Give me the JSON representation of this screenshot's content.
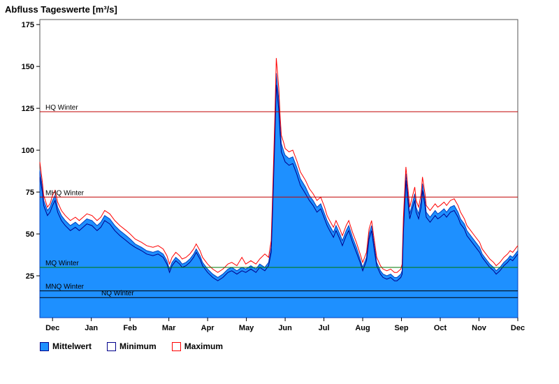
{
  "chart_data": {
    "type": "area",
    "title": "Abfluss Tageswerte [m³/s]",
    "x_axis": {
      "range": [
        0,
        376
      ],
      "tick_labels": [
        "Dec",
        "Jan",
        "Feb",
        "Mar",
        "Apr",
        "May",
        "Jun",
        "Jul",
        "Aug",
        "Sep",
        "Oct",
        "Nov",
        "Dec"
      ],
      "tick_days": [
        10,
        40.5,
        71,
        101.5,
        132,
        162.5,
        193,
        223.5,
        254,
        284.5,
        315,
        345.5,
        376
      ]
    },
    "y_axis": {
      "range": [
        0,
        178
      ],
      "ticks": [
        25,
        50,
        75,
        100,
        125,
        150,
        175
      ]
    },
    "x": [
      0,
      2,
      3,
      6,
      8,
      10,
      12,
      14,
      17,
      20,
      24,
      28,
      31,
      34,
      37,
      41,
      45,
      48,
      51,
      55,
      59,
      63,
      68,
      71,
      75,
      80,
      84,
      89,
      93,
      97,
      100,
      102,
      104,
      107,
      110,
      112,
      115,
      118,
      121,
      123,
      126,
      128,
      132,
      136,
      140,
      144,
      148,
      151,
      155,
      159,
      162,
      166,
      170,
      173,
      177,
      180,
      182,
      183,
      185,
      186,
      188,
      189,
      190,
      192,
      193,
      196,
      199,
      202,
      205,
      209,
      212,
      215,
      218,
      221,
      224,
      226,
      228,
      231,
      233,
      236,
      238,
      241,
      243,
      246,
      249,
      252,
      254,
      257,
      259,
      261,
      263,
      265,
      268,
      270,
      273,
      276,
      279,
      281,
      284,
      285,
      286,
      288,
      290,
      291,
      293,
      295,
      296,
      298,
      300,
      301,
      303,
      304,
      307,
      309,
      311,
      313,
      315,
      318,
      320,
      323,
      326,
      329,
      331,
      334,
      336,
      339,
      342,
      346,
      348,
      351,
      354,
      357,
      359,
      362,
      365,
      368,
      370,
      372,
      374,
      376
    ],
    "series": [
      {
        "name": "Mittelwert",
        "style": "area",
        "color": "#1E90FF",
        "edge": "#0040C0",
        "values": [
          88,
          78,
          70,
          64,
          66,
          70,
          73,
          66,
          61,
          58,
          55,
          57,
          55,
          57,
          59,
          58,
          55,
          57,
          61,
          59,
          55,
          52,
          49,
          47,
          44,
          42,
          40,
          39,
          40,
          38,
          34,
          29,
          33,
          36,
          34,
          32,
          33,
          35,
          38,
          41,
          37,
          33,
          29,
          26,
          24,
          26,
          29,
          30,
          28,
          30,
          29,
          31,
          29,
          32,
          30,
          33,
          42,
          65,
          115,
          146,
          130,
          115,
          104,
          99,
          97,
          95,
          96,
          90,
          83,
          78,
          73,
          70,
          66,
          68,
          62,
          58,
          55,
          51,
          55,
          50,
          46,
          52,
          55,
          48,
          42,
          35,
          30,
          36,
          50,
          55,
          44,
          33,
          28,
          26,
          25,
          26,
          24,
          24,
          26,
          28,
          55,
          86,
          70,
          62,
          68,
          74,
          66,
          62,
          70,
          80,
          70,
          63,
          60,
          62,
          64,
          62,
          63,
          65,
          63,
          66,
          67,
          63,
          59,
          56,
          52,
          49,
          46,
          42,
          38,
          35,
          32,
          30,
          28,
          30,
          33,
          35,
          37,
          36,
          38,
          40
        ]
      },
      {
        "name": "Minimum",
        "style": "line",
        "color": "#00008B",
        "values": [
          84,
          75,
          67,
          61,
          63,
          67,
          70,
          63,
          58,
          55,
          52,
          54,
          52,
          54,
          56,
          55,
          52,
          54,
          58,
          56,
          52,
          49,
          46,
          44,
          42,
          40,
          38,
          37,
          38,
          36,
          32,
          27,
          31,
          34,
          32,
          30,
          31,
          33,
          36,
          39,
          35,
          31,
          27,
          24,
          22,
          24,
          27,
          28,
          26,
          28,
          27,
          29,
          27,
          30,
          28,
          31,
          39,
          61,
          109,
          139,
          124,
          110,
          99,
          95,
          93,
          91,
          92,
          86,
          79,
          74,
          70,
          67,
          63,
          65,
          59,
          55,
          52,
          48,
          52,
          47,
          43,
          49,
          52,
          45,
          39,
          33,
          28,
          34,
          47,
          52,
          41,
          31,
          26,
          24,
          23,
          24,
          22,
          22,
          24,
          26,
          51,
          82,
          66,
          59,
          65,
          70,
          63,
          59,
          66,
          76,
          67,
          60,
          57,
          59,
          61,
          59,
          60,
          62,
          60,
          63,
          64,
          60,
          56,
          53,
          49,
          46,
          43,
          39,
          36,
          33,
          30,
          28,
          26,
          28,
          31,
          33,
          35,
          34,
          36,
          38
        ]
      },
      {
        "name": "Maximum",
        "style": "line",
        "color": "#FF0000",
        "values": [
          93,
          81,
          73,
          66,
          68,
          73,
          76,
          69,
          64,
          61,
          58,
          60,
          58,
          60,
          62,
          61,
          58,
          60,
          64,
          62,
          58,
          55,
          52,
          50,
          47,
          45,
          43,
          42,
          43,
          41,
          37,
          32,
          36,
          39,
          37,
          35,
          36,
          38,
          41,
          44,
          40,
          36,
          32,
          29,
          27,
          29,
          32,
          33,
          31,
          36,
          32,
          34,
          32,
          35,
          38,
          36,
          46,
          70,
          122,
          155,
          137,
          121,
          109,
          104,
          101,
          99,
          100,
          94,
          87,
          82,
          77,
          74,
          70,
          72,
          66,
          61,
          58,
          54,
          58,
          53,
          49,
          55,
          58,
          51,
          45,
          38,
          33,
          39,
          53,
          58,
          47,
          36,
          31,
          29,
          28,
          29,
          27,
          27,
          29,
          32,
          60,
          90,
          74,
          66,
          72,
          78,
          70,
          66,
          74,
          84,
          74,
          67,
          64,
          66,
          68,
          66,
          67,
          69,
          67,
          70,
          71,
          67,
          63,
          59,
          55,
          52,
          49,
          45,
          41,
          38,
          35,
          33,
          31,
          33,
          36,
          38,
          40,
          39,
          41,
          43
        ]
      }
    ],
    "reference_lines": [
      {
        "label": "HQ Winter",
        "value": 123,
        "color": "#C00000",
        "indent": 8
      },
      {
        "label": "MHQ Winter",
        "value": 72,
        "color": "#C00000",
        "indent": 8
      },
      {
        "label": "MQ Winter",
        "value": 30,
        "color": "#007700",
        "indent": 8
      },
      {
        "label": "MNQ Winter",
        "value": 16,
        "color": "#000000",
        "indent": 8
      },
      {
        "label": "NQ Winter",
        "value": 12,
        "color": "#000000",
        "indent": 88
      }
    ],
    "legend": [
      {
        "label": "Mittelwert",
        "fill": "#1E90FF",
        "border": "#00008B"
      },
      {
        "label": "Minimum",
        "fill": "#FFFFFF",
        "border": "#00008B"
      },
      {
        "label": "Maximum",
        "fill": "#FFFFFF",
        "border": "#FF0000"
      }
    ]
  }
}
